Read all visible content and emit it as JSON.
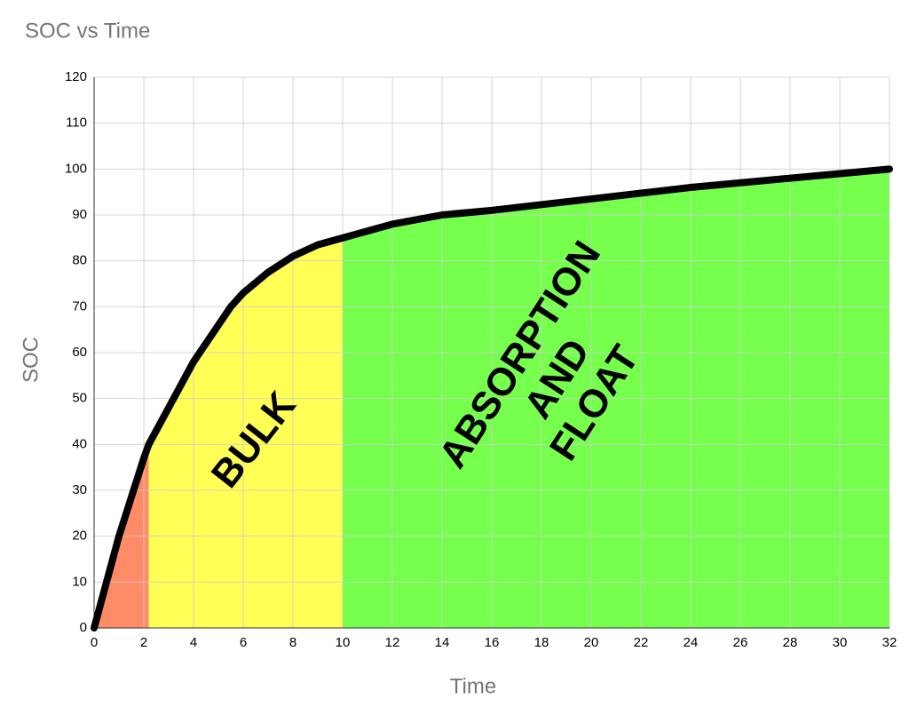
{
  "chart_data": {
    "type": "area-line",
    "title": "SOC vs Time",
    "x_label": "Time",
    "y_label": "SOC",
    "x": [
      0,
      1,
      2,
      2.2,
      3,
      4,
      5,
      5.5,
      6,
      7,
      8,
      9,
      10,
      12,
      14,
      16,
      20,
      24,
      28,
      32
    ],
    "series": [
      {
        "color": "#000000",
        "values": [
          0,
          20,
          37,
          40,
          48,
          58,
          66,
          70,
          73,
          77.5,
          81,
          83.5,
          85,
          88,
          90,
          91,
          93.5,
          96,
          98,
          100
        ]
      }
    ],
    "regions": [
      {
        "start": 0,
        "end": 2.2,
        "color": "#ff8c66"
      },
      {
        "start": 2.2,
        "end": 10,
        "color": "#ffff55",
        "label": [
          "BULK"
        ]
      },
      {
        "start": 10,
        "end": 32,
        "color": "#77ff4d",
        "label": [
          "ABSORPTION",
          "AND",
          "FLOAT"
        ]
      }
    ],
    "xlim": [
      0,
      32
    ],
    "xticks": [
      0,
      2,
      4,
      6,
      8,
      10,
      12,
      14,
      16,
      18,
      20,
      22,
      24,
      26,
      28,
      30,
      32
    ],
    "ylim": [
      0,
      120
    ],
    "yticks": [
      0,
      10,
      20,
      30,
      40,
      50,
      60,
      70,
      80,
      90,
      100,
      110,
      120
    ],
    "grid": true
  }
}
